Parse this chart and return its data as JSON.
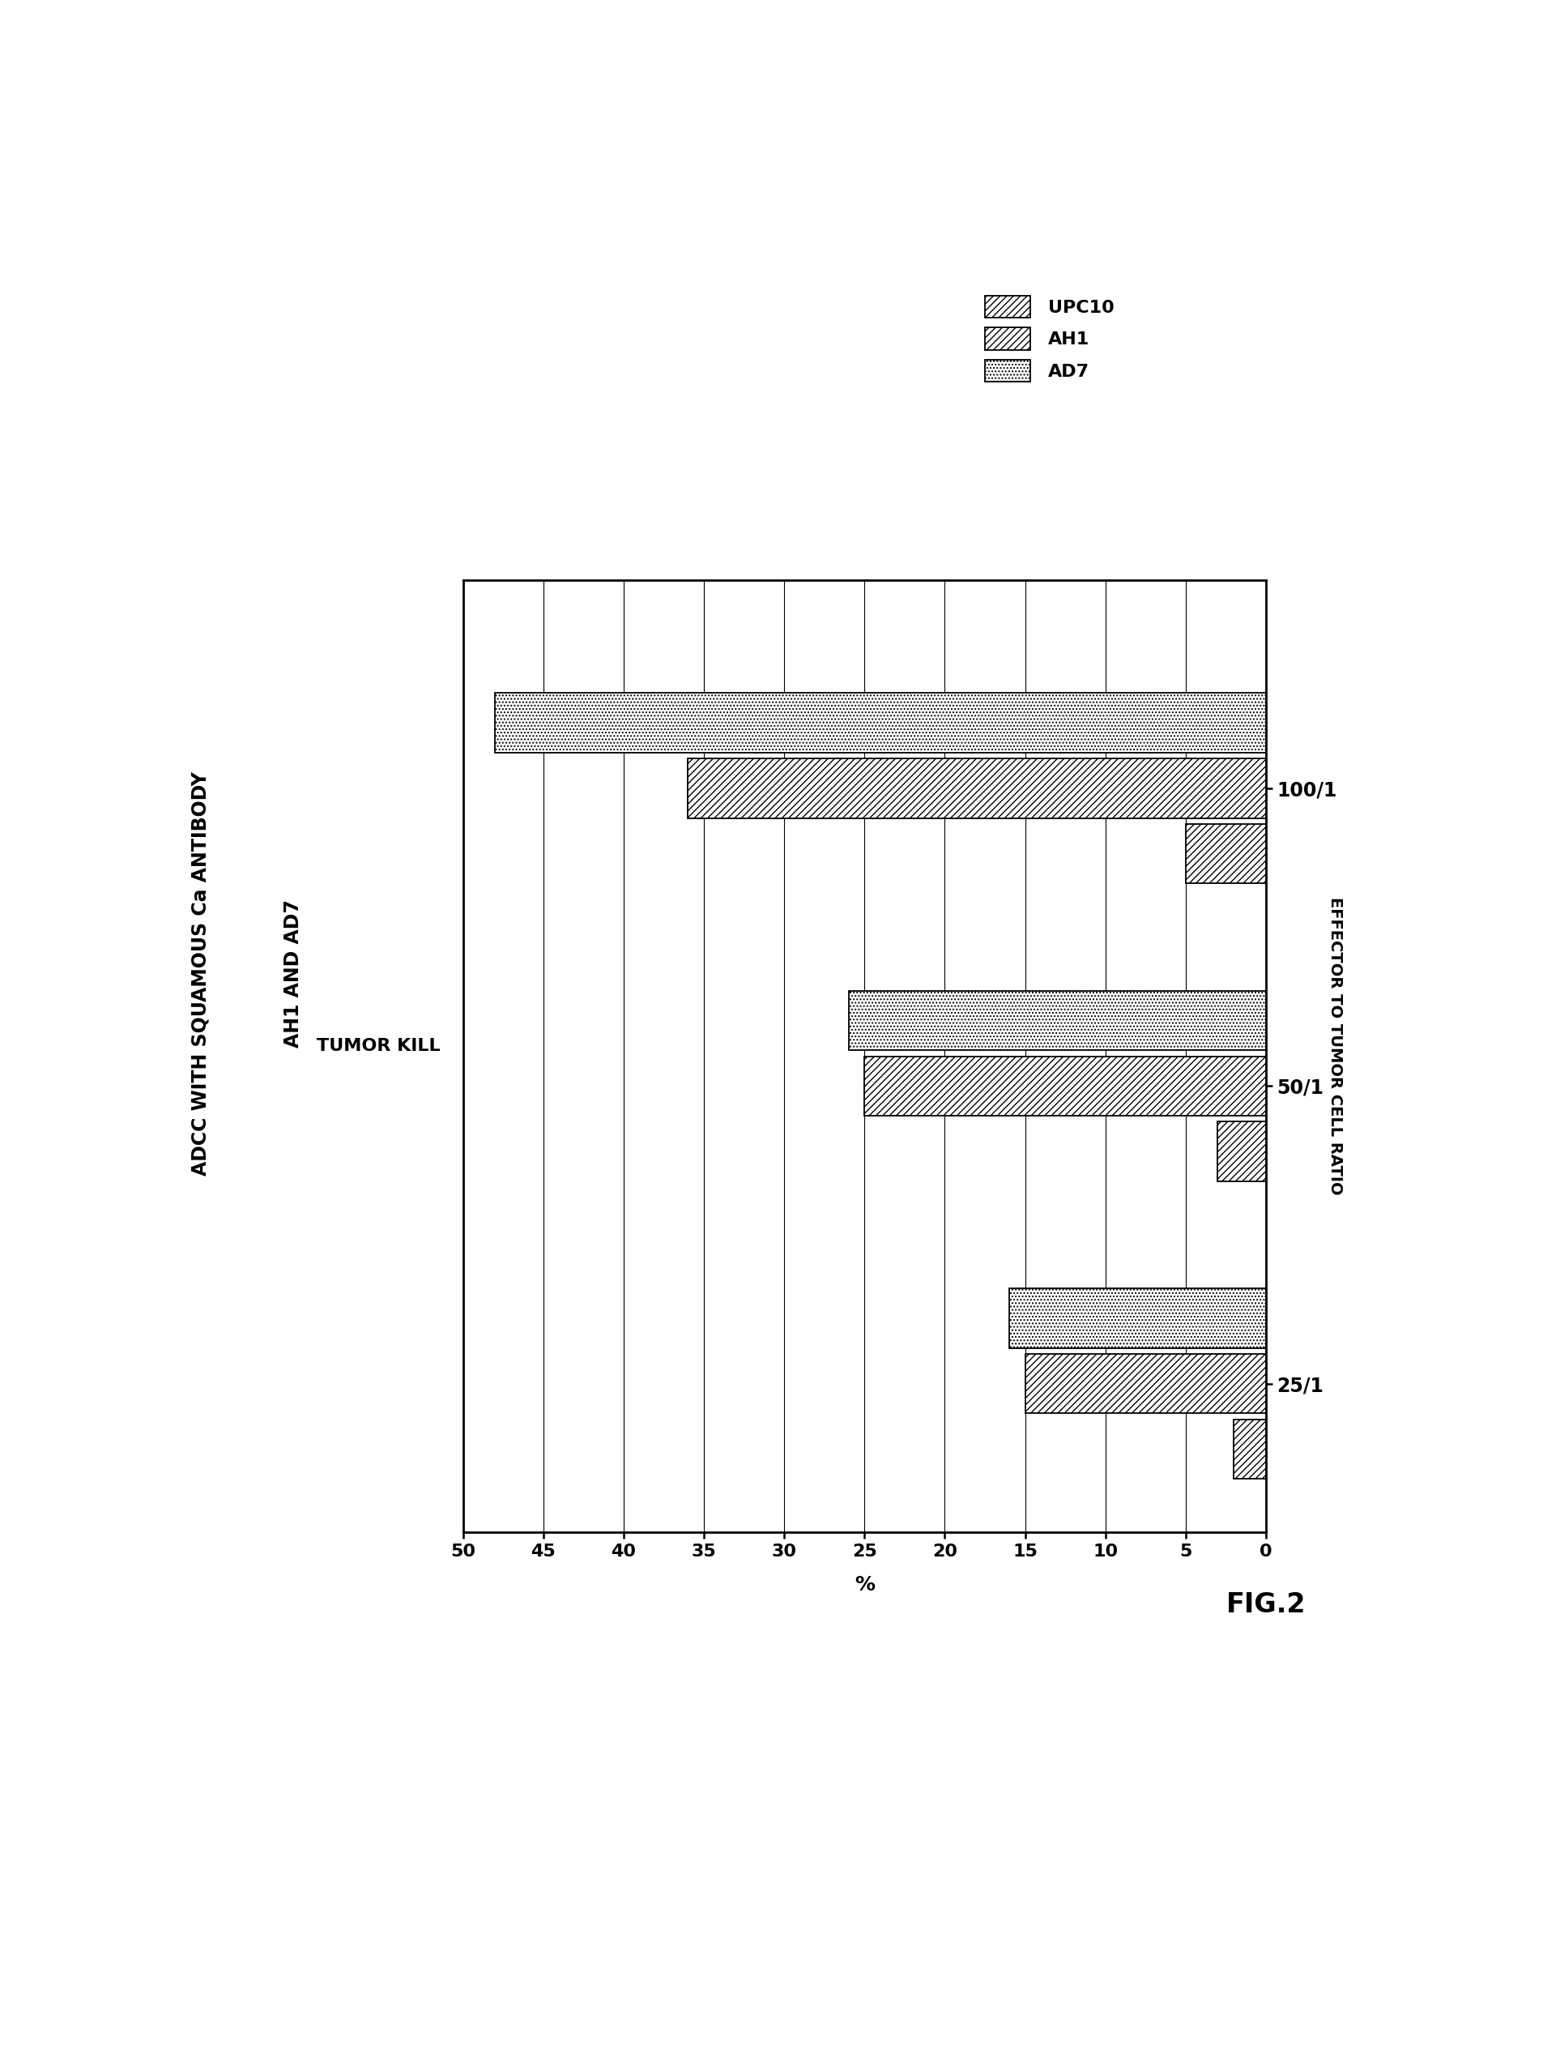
{
  "title_line1": "ADCC WITH SQUAMOUS Ca ANTIBODY",
  "title_line2": "AH1 AND AD7",
  "bottom_xlabel": "%",
  "left_ylabel": "TUMOR KILL",
  "right_ylabel": "EFFECTOR TO TUMOR CELL RATIO",
  "figcaption": "FIG.2",
  "categories": [
    "25/1",
    "50/1",
    "100/1"
  ],
  "values": {
    "UPC10": [
      2,
      3,
      5
    ],
    "AH1": [
      15,
      25,
      36
    ],
    "AD7": [
      16,
      26,
      48
    ]
  },
  "xlim": [
    0,
    50
  ],
  "xticks": [
    0,
    5,
    10,
    15,
    20,
    25,
    30,
    35,
    40,
    45,
    50
  ],
  "bar_height": 0.2,
  "offsets": {
    "AD7": 0.22,
    "AH1": 0.0,
    "UPC10": -0.22
  },
  "hatches": {
    "UPC10": "////",
    "AH1": "////",
    "AD7": "...."
  },
  "legend_labels": [
    "UPC10",
    "AH1",
    "AD7"
  ],
  "title_fontsize": 17,
  "tick_fontsize": 16,
  "label_fontsize": 15,
  "legend_fontsize": 16,
  "caption_fontsize": 24
}
